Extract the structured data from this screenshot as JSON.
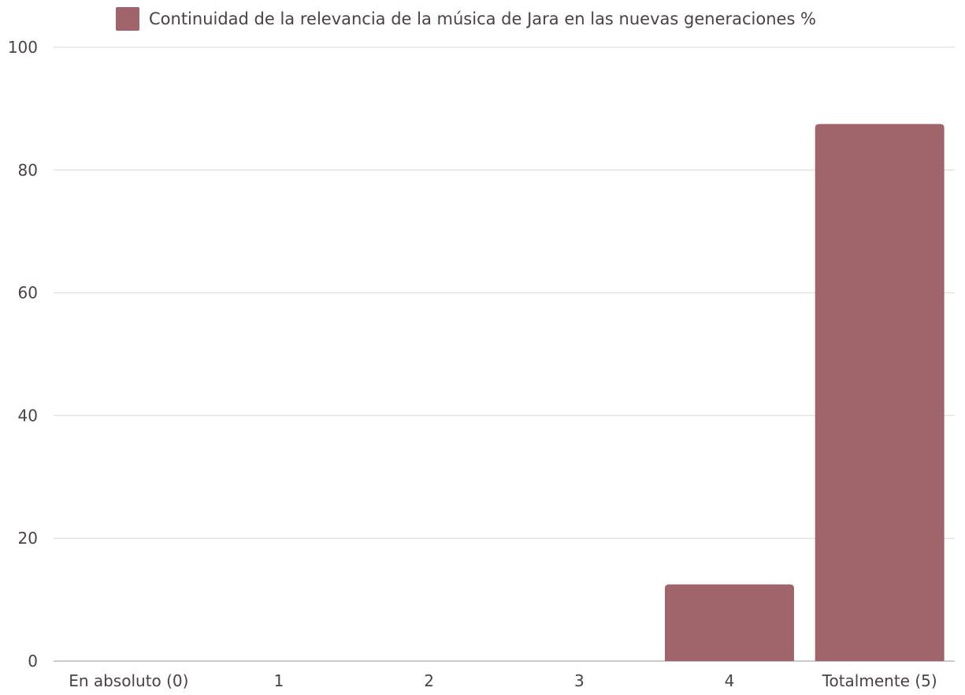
{
  "chart_data": {
    "type": "bar",
    "categories": [
      "En absoluto (0)",
      "1",
      "2",
      "3",
      "4",
      "Totalmente (5)"
    ],
    "series": [
      {
        "name": "Continuidad de la relevancia de la música de Jara en las nuevas generaciones %",
        "values": [
          0,
          0,
          0,
          0,
          12.5,
          87.5
        ],
        "color": "#a0656a"
      }
    ],
    "title": "",
    "xlabel": "",
    "ylabel": "",
    "ylim": [
      0,
      100
    ],
    "yticks": [
      0,
      20,
      40,
      60,
      80,
      100
    ],
    "grid": true,
    "legend": "top"
  }
}
